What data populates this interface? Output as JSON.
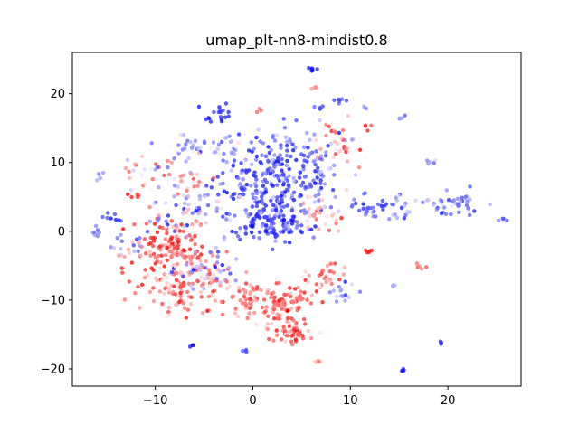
{
  "chart_data": {
    "type": "scatter",
    "title": "umap_plt-nn8-mindist0.8",
    "xlabel": "",
    "ylabel": "",
    "xlim": [
      -18.5,
      27.5
    ],
    "ylim": [
      -22.5,
      26.0
    ],
    "xticks": [
      -10,
      0,
      10,
      20
    ],
    "yticks": [
      -20,
      -10,
      0,
      10,
      20
    ],
    "xtick_labels": [
      "−10",
      "0",
      "10",
      "20"
    ],
    "ytick_labels": [
      "−20",
      "−10",
      "0",
      "10",
      "20"
    ],
    "grid": false,
    "legend": "none",
    "colormap": "bwr",
    "color_scale": {
      "low": "#0000ff",
      "mid": "#ffffff",
      "high": "#ff0000"
    },
    "clusters": [
      {
        "x": 2.5,
        "y": 8.0,
        "sx": 3.2,
        "sy": 3.5,
        "n": 300,
        "c": 0.15,
        "cs": 0.12
      },
      {
        "x": 2.0,
        "y": 1.5,
        "sx": 2.0,
        "sy": 1.5,
        "n": 120,
        "c": 0.12,
        "cs": 0.1
      },
      {
        "x": -8.5,
        "y": -2.5,
        "sx": 2.0,
        "sy": 2.5,
        "n": 120,
        "c": 0.85,
        "cs": 0.12
      },
      {
        "x": -7.0,
        "y": -8.0,
        "sx": 2.5,
        "sy": 2.0,
        "n": 110,
        "c": 0.75,
        "cs": 0.15
      },
      {
        "x": -6.5,
        "y": 2.5,
        "sx": 2.5,
        "sy": 2.0,
        "n": 70,
        "c": 0.4,
        "cs": 0.2
      },
      {
        "x": -5.0,
        "y": -5.5,
        "sx": 2.0,
        "sy": 1.5,
        "n": 70,
        "c": 0.5,
        "cs": 0.25
      },
      {
        "x": 3.0,
        "y": -10.0,
        "sx": 1.8,
        "sy": 1.5,
        "n": 90,
        "c": 0.85,
        "cs": 0.1
      },
      {
        "x": 4.0,
        "y": -14.5,
        "sx": 1.2,
        "sy": 1.0,
        "n": 60,
        "c": 0.8,
        "cs": 0.15
      },
      {
        "x": 7.5,
        "y": -6.5,
        "sx": 1.2,
        "sy": 1.0,
        "n": 30,
        "c": 0.75,
        "cs": 0.15
      },
      {
        "x": 9.0,
        "y": -9.0,
        "sx": 0.8,
        "sy": 0.8,
        "n": 15,
        "c": 0.3,
        "cs": 0.1
      },
      {
        "x": -0.5,
        "y": -10.0,
        "sx": 1.2,
        "sy": 1.2,
        "n": 35,
        "c": 0.8,
        "cs": 0.12
      },
      {
        "x": 20.0,
        "y": 4.0,
        "sx": 1.5,
        "sy": 1.0,
        "n": 40,
        "c": 0.25,
        "cs": 0.15
      },
      {
        "x": 15.0,
        "y": 3.5,
        "sx": 1.0,
        "sy": 1.0,
        "n": 20,
        "c": 0.25,
        "cs": 0.1
      },
      {
        "x": 12.0,
        "y": 3.5,
        "sx": 1.0,
        "sy": 0.8,
        "n": 25,
        "c": 0.15,
        "cs": 0.08
      },
      {
        "x": 9.0,
        "y": 12.0,
        "sx": 1.2,
        "sy": 2.0,
        "n": 40,
        "c": 0.65,
        "cs": 0.2
      },
      {
        "x": 7.0,
        "y": 2.5,
        "sx": 1.2,
        "sy": 1.0,
        "n": 30,
        "c": 0.7,
        "cs": 0.15
      },
      {
        "x": -10.5,
        "y": 8.5,
        "sx": 1.5,
        "sy": 1.5,
        "n": 30,
        "c": 0.55,
        "cs": 0.2
      },
      {
        "x": -7.0,
        "y": 12.5,
        "sx": 1.0,
        "sy": 1.0,
        "n": 20,
        "c": 0.3,
        "cs": 0.15
      },
      {
        "x": -3.5,
        "y": 12.5,
        "sx": 1.2,
        "sy": 1.0,
        "n": 20,
        "c": 0.3,
        "cs": 0.15
      },
      {
        "x": -6.5,
        "y": 7.5,
        "sx": 1.0,
        "sy": 0.8,
        "n": 20,
        "c": 0.7,
        "cs": 0.15
      },
      {
        "x": -3.5,
        "y": 17.0,
        "sx": 1.0,
        "sy": 0.6,
        "n": 18,
        "c": 0.05,
        "cs": 0.05
      },
      {
        "x": -13.0,
        "y": -1.5,
        "sx": 1.2,
        "sy": 1.0,
        "n": 18,
        "c": 0.3,
        "cs": 0.15
      },
      {
        "x": -14.5,
        "y": 2.0,
        "sx": 0.6,
        "sy": 0.4,
        "n": 8,
        "c": 0.1,
        "cs": 0.05
      },
      {
        "x": -16.0,
        "y": 0.0,
        "sx": 0.5,
        "sy": 0.6,
        "n": 8,
        "c": 0.25,
        "cs": 0.05
      },
      {
        "x": -15.5,
        "y": 8.0,
        "sx": 0.4,
        "sy": 0.3,
        "n": 5,
        "c": 0.3,
        "cs": 0.05
      },
      {
        "x": -12.5,
        "y": 5.2,
        "sx": 0.4,
        "sy": 0.3,
        "n": 5,
        "c": 0.95,
        "cs": 0.03
      },
      {
        "x": 6.0,
        "y": 23.5,
        "sx": 0.3,
        "sy": 0.2,
        "n": 6,
        "c": 0.05,
        "cs": 0.03
      },
      {
        "x": 6.5,
        "y": 21.0,
        "sx": 0.3,
        "sy": 0.2,
        "n": 4,
        "c": 0.8,
        "cs": 0.05
      },
      {
        "x": 9.0,
        "y": 19.0,
        "sx": 0.4,
        "sy": 0.3,
        "n": 6,
        "c": 0.1,
        "cs": 0.05
      },
      {
        "x": 15.5,
        "y": 16.5,
        "sx": 0.4,
        "sy": 0.3,
        "n": 5,
        "c": 0.25,
        "cs": 0.05
      },
      {
        "x": 18.0,
        "y": 10.5,
        "sx": 0.5,
        "sy": 0.5,
        "n": 6,
        "c": 0.3,
        "cs": 0.05
      },
      {
        "x": 22.0,
        "y": 4.5,
        "sx": 0.5,
        "sy": 0.5,
        "n": 6,
        "c": 0.2,
        "cs": 0.05
      },
      {
        "x": 25.7,
        "y": 1.8,
        "sx": 0.3,
        "sy": 0.2,
        "n": 4,
        "c": 0.15,
        "cs": 0.05
      },
      {
        "x": 12.0,
        "y": -3.0,
        "sx": 0.4,
        "sy": 0.3,
        "n": 5,
        "c": 0.95,
        "cs": 0.03
      },
      {
        "x": 17.0,
        "y": -5.0,
        "sx": 0.4,
        "sy": 0.3,
        "n": 5,
        "c": 0.8,
        "cs": 0.05
      },
      {
        "x": 14.5,
        "y": -8.0,
        "sx": 0.3,
        "sy": 0.3,
        "n": 3,
        "c": 0.3,
        "cs": 0.05
      },
      {
        "x": 19.3,
        "y": -16.3,
        "sx": 0.2,
        "sy": 0.2,
        "n": 4,
        "c": 0.05,
        "cs": 0.03
      },
      {
        "x": 15.3,
        "y": -20.2,
        "sx": 0.2,
        "sy": 0.15,
        "n": 4,
        "c": 0.05,
        "cs": 0.03
      },
      {
        "x": -0.7,
        "y": -17.3,
        "sx": 0.2,
        "sy": 0.2,
        "n": 4,
        "c": 0.2,
        "cs": 0.05
      },
      {
        "x": -6.3,
        "y": -16.7,
        "sx": 0.2,
        "sy": 0.15,
        "n": 3,
        "c": 0.0,
        "cs": 0.02
      },
      {
        "x": 6.5,
        "y": -19.0,
        "sx": 0.3,
        "sy": 0.2,
        "n": 4,
        "c": 0.7,
        "cs": 0.1
      },
      {
        "x": 11.5,
        "y": 15.0,
        "sx": 0.4,
        "sy": 0.3,
        "n": 4,
        "c": 0.9,
        "cs": 0.05
      },
      {
        "x": 11.5,
        "y": 18.0,
        "sx": 0.3,
        "sy": 0.3,
        "n": 3,
        "c": 0.3,
        "cs": 0.05
      },
      {
        "x": 0.5,
        "y": 17.5,
        "sx": 0.3,
        "sy": 0.3,
        "n": 3,
        "c": 0.8,
        "cs": 0.05
      },
      {
        "x": 7.0,
        "y": 18.0,
        "sx": 0.3,
        "sy": 0.2,
        "n": 3,
        "c": 0.15,
        "cs": 0.05
      }
    ]
  }
}
